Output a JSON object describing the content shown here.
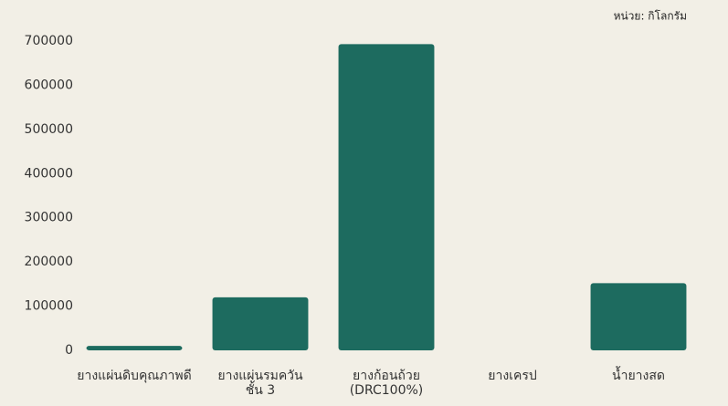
{
  "chart_data": {
    "type": "bar",
    "unit_note": "หน่วย: กิโลกรัม",
    "categories": [
      [
        "ยางแผ่นดิบคุณภาพดี"
      ],
      [
        "ยางแผ่นรมควัน",
        "ชั้น 3"
      ],
      [
        "ยางก้อนถ้วย",
        "(DRC100%)"
      ],
      [
        "ยางเครป"
      ],
      [
        "น้ำยางสด"
      ]
    ],
    "values": [
      10000,
      120000,
      693000,
      0,
      152000
    ],
    "color": "#1d6b5f",
    "ylim": [
      0,
      700000
    ],
    "yticks": [
      0,
      100000,
      200000,
      300000,
      400000,
      500000,
      600000,
      700000
    ],
    "grid": false
  }
}
